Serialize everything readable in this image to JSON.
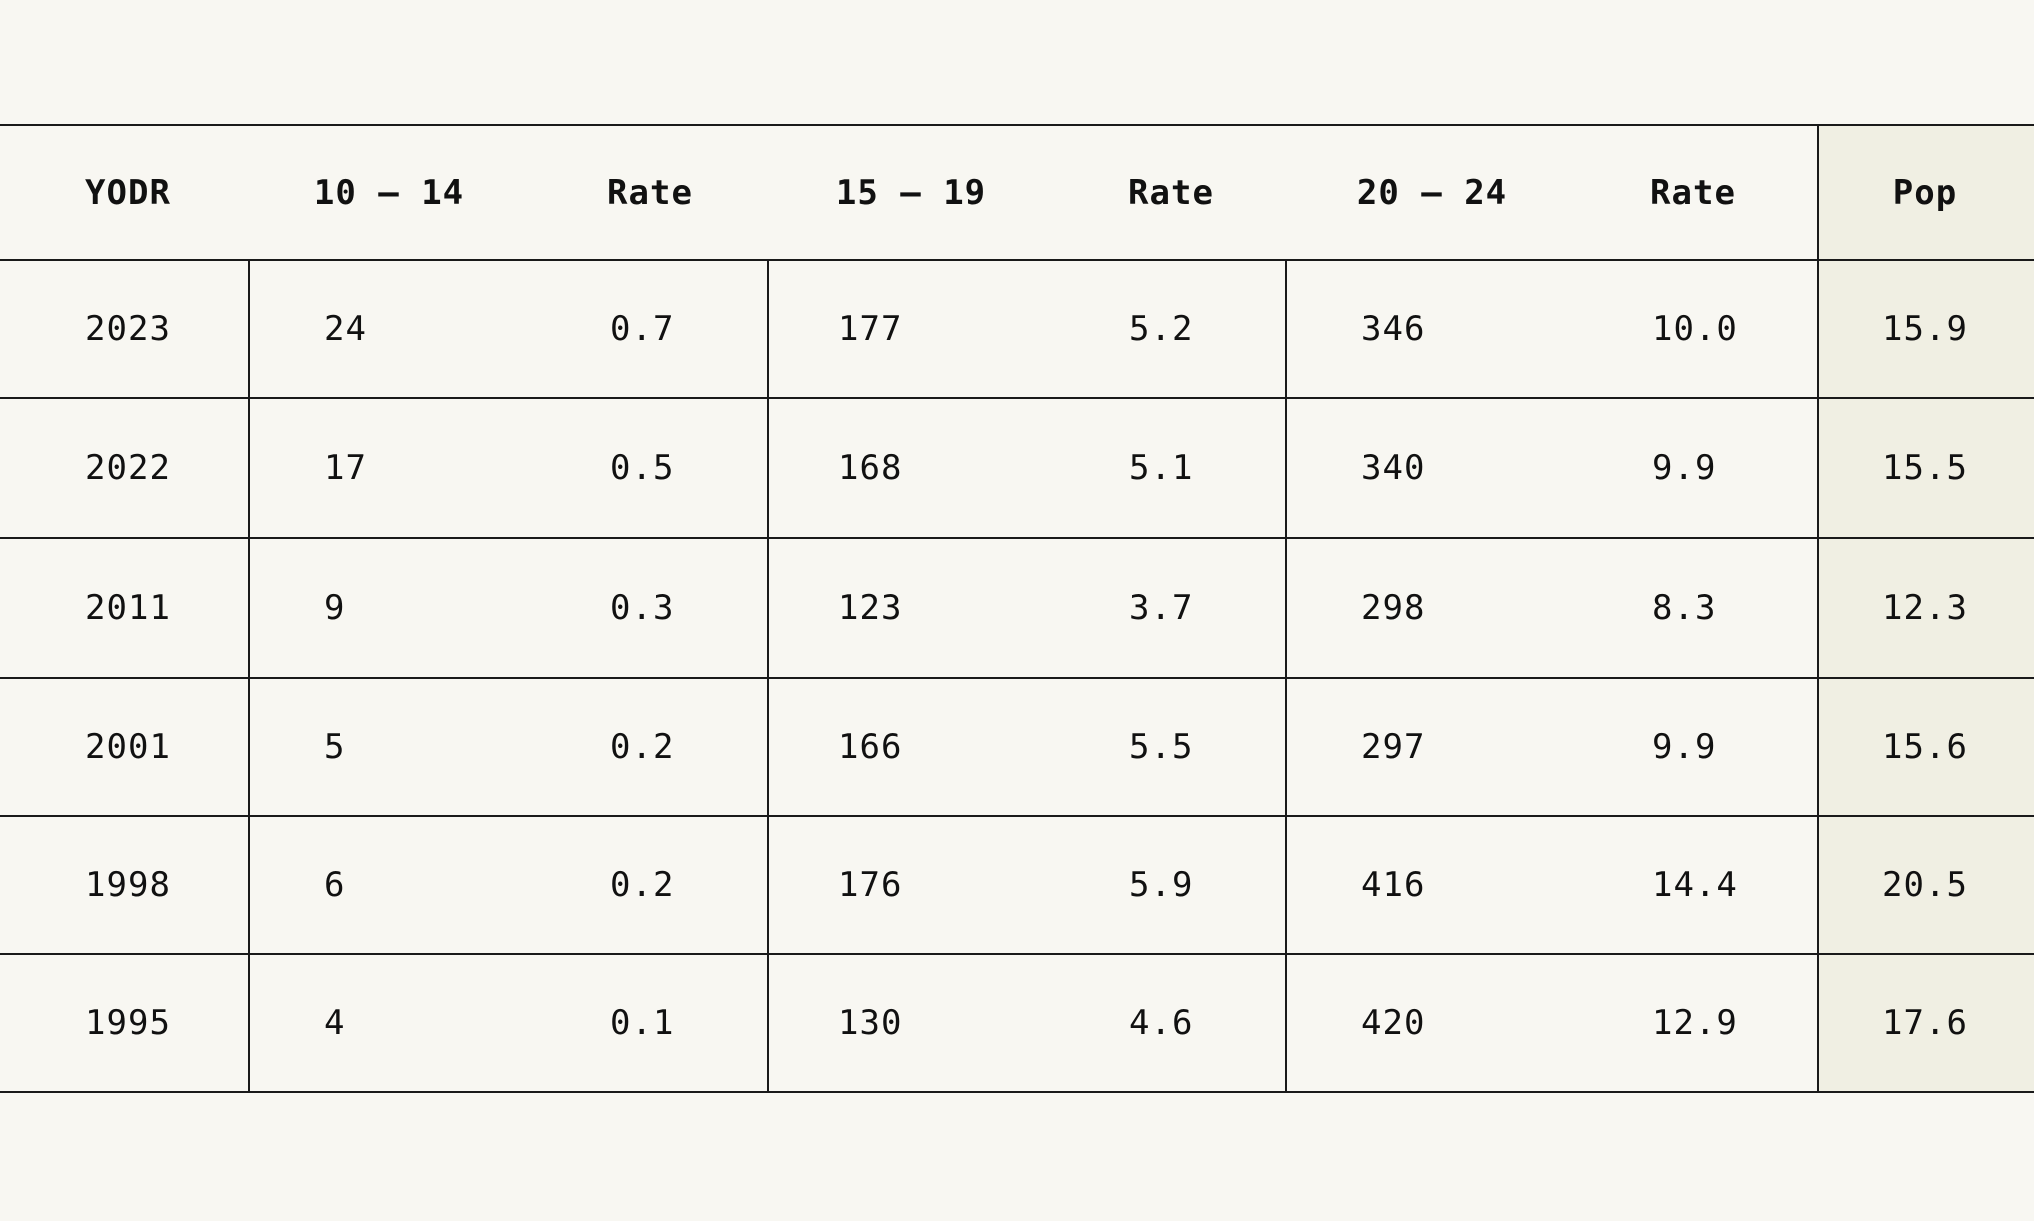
{
  "chart_data": {
    "type": "table",
    "columns": [
      "YODR",
      "10 – 14",
      "Rate",
      "15 – 19",
      "Rate",
      "20 – 24",
      "Rate",
      "Pop"
    ],
    "rows": [
      [
        "2023",
        "24",
        "0.7",
        "177",
        "5.2",
        "346",
        "10.0",
        "15.9"
      ],
      [
        "2022",
        "17",
        "0.5",
        "168",
        "5.1",
        "340",
        "9.9",
        "15.5"
      ],
      [
        "2011",
        "9",
        "0.3",
        "123",
        "3.7",
        "298",
        "8.3",
        "12.3"
      ],
      [
        "2001",
        "5",
        "0.2",
        "166",
        "5.5",
        "297",
        "9.9",
        "15.6"
      ],
      [
        "1998",
        "6",
        "0.2",
        "176",
        "5.9",
        "416",
        "14.4",
        "20.5"
      ],
      [
        "1995",
        "4",
        "0.1",
        "130",
        "4.6",
        "420",
        "12.9",
        "17.6"
      ]
    ],
    "highlight_column": "Pop",
    "highlight_color": "#f0efe3",
    "background_color": "#f8f7f2",
    "line_color": "#1a1a1a"
  }
}
